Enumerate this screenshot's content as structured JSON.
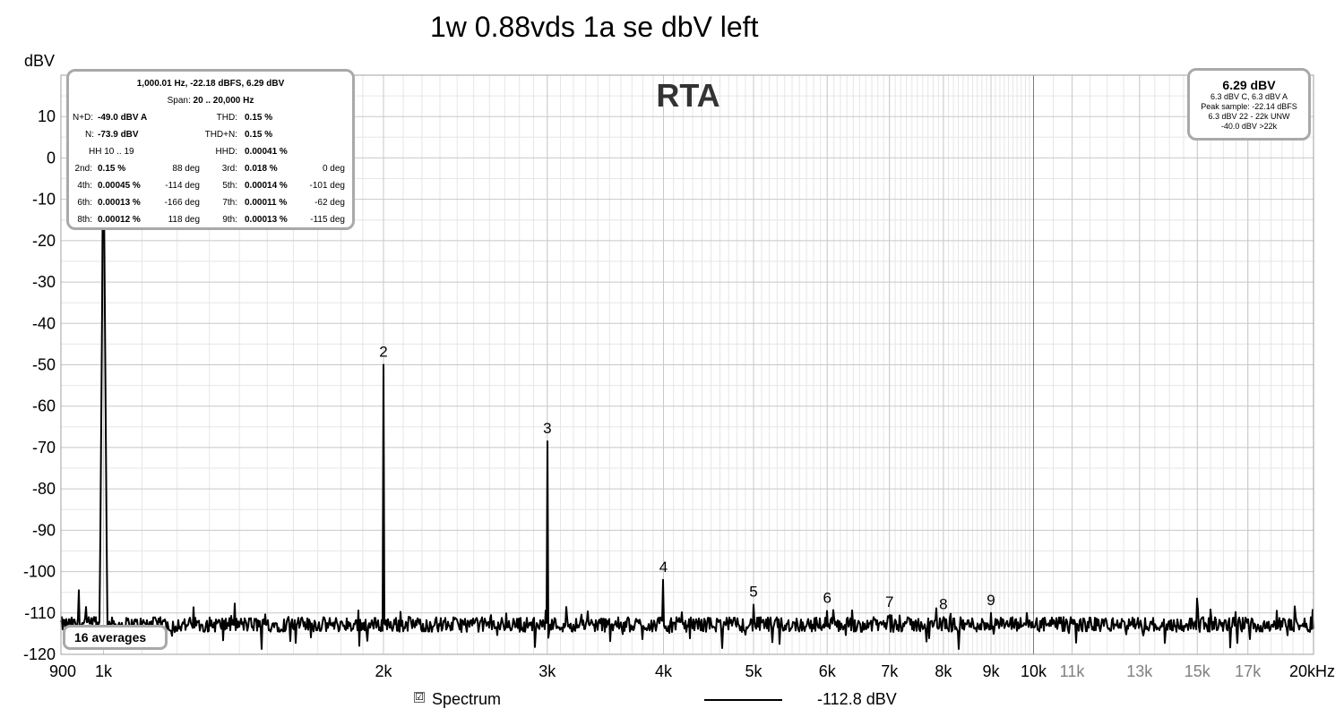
{
  "chart_data": {
    "type": "line",
    "title": "1w 0.88vds 1a se dbV left",
    "watermark": "RTA",
    "ylabel": "dBV",
    "xlabel": "",
    "x_scale": "log",
    "xlim": [
      900,
      20000
    ],
    "ylim": [
      -120,
      20
    ],
    "y_ticks": [
      10,
      0,
      -10,
      -20,
      -30,
      -40,
      -50,
      -60,
      -70,
      -80,
      -90,
      -100,
      -110,
      -120
    ],
    "y_tick_labels": [
      "10",
      "0",
      "-10",
      "-20",
      "-30",
      "-40",
      "-50",
      "-60",
      "-70",
      "-80",
      "-90",
      "-100",
      "-110",
      "-120"
    ],
    "x_ticks": [
      {
        "value": 900,
        "label": "900",
        "style": "major"
      },
      {
        "value": 1000,
        "label": "1k",
        "style": "major"
      },
      {
        "value": 2000,
        "label": "2k",
        "style": "major"
      },
      {
        "value": 3000,
        "label": "3k",
        "style": "major"
      },
      {
        "value": 4000,
        "label": "4k",
        "style": "major"
      },
      {
        "value": 5000,
        "label": "5k",
        "style": "major"
      },
      {
        "value": 6000,
        "label": "6k",
        "style": "major"
      },
      {
        "value": 7000,
        "label": "7k",
        "style": "major"
      },
      {
        "value": 8000,
        "label": "8k",
        "style": "major"
      },
      {
        "value": 9000,
        "label": "9k",
        "style": "major"
      },
      {
        "value": 10000,
        "label": "10k",
        "style": "major"
      },
      {
        "value": 11000,
        "label": "11k",
        "style": "minor"
      },
      {
        "value": 13000,
        "label": "13k",
        "style": "minor"
      },
      {
        "value": 15000,
        "label": "15k",
        "style": "minor"
      },
      {
        "value": 17000,
        "label": "17k",
        "style": "minor"
      },
      {
        "value": 20000,
        "label": "20kHz",
        "style": "major"
      }
    ],
    "grid": true,
    "noise_floor_dbv": -112.8,
    "series": [
      {
        "name": "Spectrum",
        "color": "#000000",
        "peaks": [
          {
            "x": 940,
            "y": -104.5
          },
          {
            "x": 1000,
            "y": 6.29
          },
          {
            "x": 2000,
            "y": -50
          },
          {
            "x": 3000,
            "y": -68.5
          },
          {
            "x": 4000,
            "y": -102
          },
          {
            "x": 5000,
            "y": -108
          },
          {
            "x": 6000,
            "y": -109.5
          },
          {
            "x": 7000,
            "y": -110.5
          },
          {
            "x": 8000,
            "y": -111
          },
          {
            "x": 9000,
            "y": -110
          },
          {
            "x": 15000,
            "y": -106.5
          }
        ]
      }
    ],
    "harmonic_markers": [
      {
        "label": "2",
        "x": 2000,
        "y": -50
      },
      {
        "label": "3",
        "x": 3000,
        "y": -68.5
      },
      {
        "label": "4",
        "x": 4000,
        "y": -102
      },
      {
        "label": "5",
        "x": 5000,
        "y": -108
      },
      {
        "label": "6",
        "x": 6000,
        "y": -109.5
      },
      {
        "label": "7",
        "x": 7000,
        "y": -110.5
      },
      {
        "label": "8",
        "x": 8000,
        "y": -111
      },
      {
        "label": "9",
        "x": 9000,
        "y": -110
      }
    ]
  },
  "info_panel": {
    "header": "1,000.01 Hz, -22.18 dBFS, 6.29 dBV",
    "span_label": "Span:",
    "span_value": "20 .. 20,000 Hz",
    "nd_label": "N+D:",
    "nd_value": "-49.0 dBV A",
    "thd_label": "THD:",
    "thd_value": "0.15 %",
    "n_label": "N:",
    "n_value": "-73.9 dBV",
    "thdn_label": "THD+N:",
    "thdn_value": "0.15 %",
    "hh_label": "HH 10 .. 19",
    "hhd_label": "HHD:",
    "hhd_value": "0.00041 %",
    "harmonics": [
      {
        "label": "2nd:",
        "value": "0.15 %",
        "phase": "88 deg",
        "label2": "3rd:",
        "value2": "0.018 %",
        "phase2": "0 deg"
      },
      {
        "label": "4th:",
        "value": "0.00045 %",
        "phase": "-114 deg",
        "label2": "5th:",
        "value2": "0.00014 %",
        "phase2": "-101 deg"
      },
      {
        "label": "6th:",
        "value": "0.00013 %",
        "phase": "-166 deg",
        "label2": "7th:",
        "value2": "0.00011 %",
        "phase2": "-62 deg"
      },
      {
        "label": "8th:",
        "value": "0.00012 %",
        "phase": "118 deg",
        "label2": "9th:",
        "value2": "0.00013 %",
        "phase2": "-115 deg"
      }
    ]
  },
  "level_panel": {
    "main": "6.29 dBV",
    "line1": "6.3 dBV C, 6.3 dBV A",
    "line2": "Peak sample: -22.14 dBFS",
    "line3": "6.3 dBV 22 - 22k UNW",
    "line4": "-40.0 dBV >22k"
  },
  "averages_label": "16 averages",
  "legend": {
    "check": "☑",
    "label": "Spectrum",
    "value": "-112.8 dBV"
  }
}
